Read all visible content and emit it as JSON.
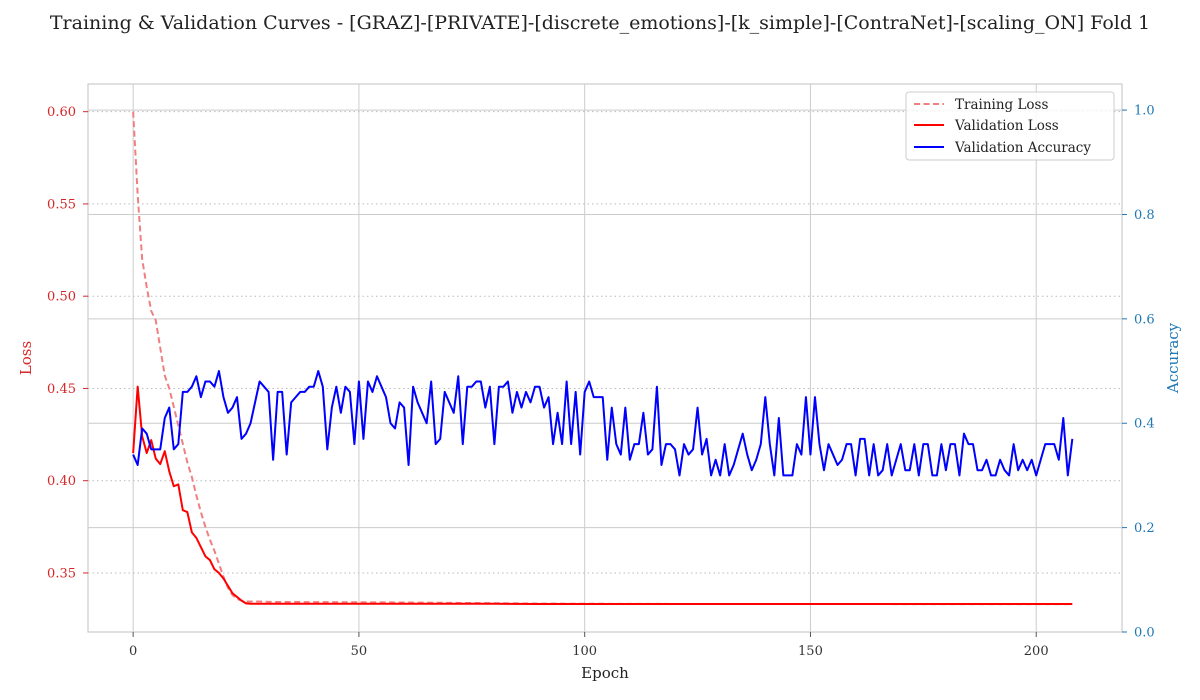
{
  "chart_data": {
    "type": "line",
    "title": "Training & Validation Curves - [GRAZ]-[PRIVATE]-[discrete_emotions]-[k_simple]-[ContraNet]-[scaling_ON] Fold 1",
    "xlabel": "Epoch",
    "ylabel_left": "Loss",
    "ylabel_right": "Accuracy",
    "xlim": [
      -10,
      219
    ],
    "ylim_left": [
      0.318,
      0.615
    ],
    "ylim_right": [
      0.0,
      1.05
    ],
    "x_ticks": [
      0,
      50,
      100,
      150,
      200
    ],
    "y_ticks_left": [
      0.35,
      0.4,
      0.45,
      0.5,
      0.55,
      0.6
    ],
    "y_ticks_right": [
      0.0,
      0.2,
      0.4,
      0.6,
      0.8,
      1.0
    ],
    "grid": true,
    "legend_position": "top-right",
    "series": [
      {
        "name": "Training Loss",
        "axis": "left",
        "style": "dashed",
        "color": "#f08080",
        "x": [
          0,
          1,
          2,
          3,
          4,
          5,
          6,
          7,
          8,
          9,
          10,
          11,
          12,
          13,
          14,
          15,
          16,
          17,
          18,
          19,
          20,
          21,
          22,
          23,
          24,
          25,
          26,
          28,
          30,
          40,
          50,
          60,
          70,
          80,
          90,
          100,
          120,
          150,
          180,
          208
        ],
        "y": [
          0.6,
          0.555,
          0.52,
          0.505,
          0.492,
          0.487,
          0.472,
          0.457,
          0.45,
          0.44,
          0.43,
          0.42,
          0.41,
          0.402,
          0.392,
          0.383,
          0.375,
          0.368,
          0.362,
          0.355,
          0.348,
          0.342,
          0.338,
          0.336,
          0.335,
          0.3345,
          0.3345,
          0.3345,
          0.3343,
          0.3342,
          0.3341,
          0.334,
          0.3338,
          0.3336,
          0.3334,
          0.3333,
          0.3332,
          0.3332,
          0.3331,
          0.3331
        ]
      },
      {
        "name": "Validation Loss",
        "axis": "left",
        "style": "solid",
        "color": "#ff0000",
        "x": [
          0,
          1,
          2,
          3,
          4,
          5,
          6,
          7,
          8,
          9,
          10,
          11,
          12,
          13,
          14,
          15,
          16,
          17,
          18,
          19,
          20,
          21,
          22,
          23,
          24,
          25,
          26,
          28,
          30,
          40,
          50,
          60,
          70,
          80,
          90,
          100,
          120,
          150,
          180,
          208
        ],
        "y": [
          0.415,
          0.451,
          0.424,
          0.415,
          0.422,
          0.412,
          0.409,
          0.416,
          0.405,
          0.397,
          0.398,
          0.384,
          0.383,
          0.372,
          0.369,
          0.364,
          0.359,
          0.357,
          0.352,
          0.35,
          0.347,
          0.343,
          0.339,
          0.337,
          0.335,
          0.3335,
          0.3333,
          0.3333,
          0.3333,
          0.3333,
          0.3333,
          0.3333,
          0.3333,
          0.3333,
          0.3332,
          0.3332,
          0.3332,
          0.3332,
          0.3332,
          0.3332
        ]
      },
      {
        "name": "Validation Accuracy",
        "axis": "right",
        "style": "solid",
        "color": "#0000ff",
        "x_start": 0,
        "x_step": 1,
        "y": [
          0.34,
          0.32,
          0.39,
          0.38,
          0.35,
          0.35,
          0.35,
          0.41,
          0.43,
          0.35,
          0.36,
          0.46,
          0.46,
          0.47,
          0.49,
          0.45,
          0.48,
          0.48,
          0.47,
          0.5,
          0.45,
          0.42,
          0.43,
          0.45,
          0.37,
          0.38,
          0.4,
          0.44,
          0.48,
          0.47,
          0.46,
          0.33,
          0.46,
          0.46,
          0.34,
          0.44,
          0.45,
          0.46,
          0.46,
          0.47,
          0.47,
          0.5,
          0.47,
          0.35,
          0.43,
          0.47,
          0.42,
          0.47,
          0.46,
          0.36,
          0.48,
          0.37,
          0.48,
          0.46,
          0.49,
          0.47,
          0.45,
          0.4,
          0.39,
          0.44,
          0.43,
          0.32,
          0.47,
          0.44,
          0.42,
          0.4,
          0.48,
          0.36,
          0.37,
          0.46,
          0.44,
          0.42,
          0.49,
          0.36,
          0.47,
          0.47,
          0.48,
          0.48,
          0.43,
          0.47,
          0.36,
          0.47,
          0.47,
          0.48,
          0.42,
          0.46,
          0.43,
          0.46,
          0.44,
          0.47,
          0.47,
          0.43,
          0.45,
          0.36,
          0.42,
          0.36,
          0.48,
          0.36,
          0.46,
          0.34,
          0.46,
          0.48,
          0.45,
          0.45,
          0.45,
          0.33,
          0.43,
          0.36,
          0.34,
          0.43,
          0.33,
          0.36,
          0.36,
          0.42,
          0.34,
          0.35,
          0.47,
          0.32,
          0.36,
          0.36,
          0.35,
          0.3,
          0.36,
          0.34,
          0.35,
          0.43,
          0.34,
          0.37,
          0.3,
          0.33,
          0.3,
          0.36,
          0.3,
          0.32,
          0.35,
          0.38,
          0.34,
          0.31,
          0.33,
          0.36,
          0.45,
          0.36,
          0.3,
          0.41,
          0.3,
          0.3,
          0.3,
          0.36,
          0.34,
          0.45,
          0.34,
          0.45,
          0.36,
          0.31,
          0.36,
          0.34,
          0.32,
          0.33,
          0.36,
          0.36,
          0.3,
          0.37,
          0.37,
          0.3,
          0.36,
          0.3,
          0.31,
          0.36,
          0.3,
          0.33,
          0.36,
          0.31,
          0.31,
          0.36,
          0.3,
          0.36,
          0.36,
          0.3,
          0.3,
          0.36,
          0.31,
          0.36,
          0.36,
          0.3,
          0.38,
          0.36,
          0.36,
          0.31,
          0.31,
          0.33,
          0.3,
          0.3,
          0.33,
          0.31,
          0.3,
          0.36,
          0.31,
          0.33,
          0.31,
          0.33,
          0.3,
          0.33,
          0.36,
          0.36,
          0.36,
          0.33,
          0.41,
          0.3,
          0.37
        ]
      }
    ]
  },
  "colors": {
    "left_axis": "#d62728",
    "right_axis": "#1f77b4",
    "grid": "#cccccc",
    "frame": "#cccccc"
  }
}
